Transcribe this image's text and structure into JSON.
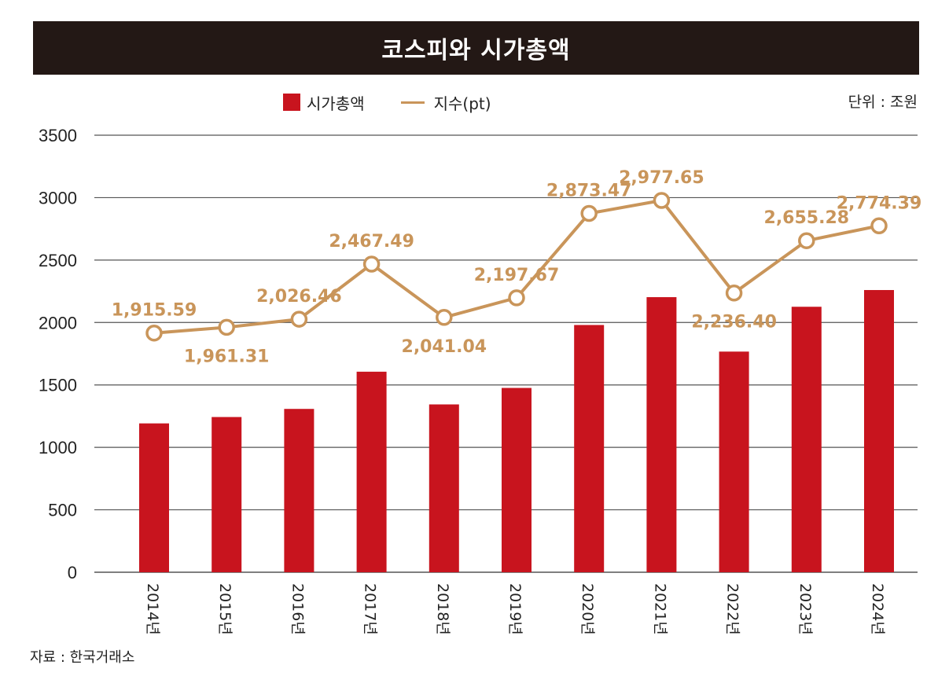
{
  "header": {
    "title": "코스피와 시가총액"
  },
  "legend": {
    "bar_label": "시가총액",
    "line_label": "지수(pt)"
  },
  "unit": "단위 : 조원",
  "source": "자료 : 한국거래소",
  "colors": {
    "bar": "#c8141e",
    "line": "#c9955a",
    "title_bg": "#231815",
    "grid": "#555555"
  },
  "chart_data": {
    "type": "bar+line",
    "title": "코스피와 시가총액",
    "categories": [
      "2014년",
      "2015년",
      "2016년",
      "2017년",
      "2018년",
      "2019년",
      "2020년",
      "2021년",
      "2022년",
      "2023년",
      "2024년"
    ],
    "ylim": [
      0,
      3500
    ],
    "yticks": [
      0,
      500,
      1000,
      1500,
      2000,
      2500,
      3000,
      3500
    ],
    "series": [
      {
        "name": "시가총액",
        "type": "bar",
        "values": [
          1192,
          1243,
          1308,
          1606,
          1344,
          1476,
          1980,
          2203,
          1767,
          2126,
          2260
        ]
      },
      {
        "name": "지수(pt)",
        "type": "line",
        "values": [
          1915.59,
          1961.31,
          2026.46,
          2467.49,
          2041.04,
          2197.67,
          2873.47,
          2977.65,
          2236.4,
          2655.28,
          2774.39
        ],
        "labels": [
          "1,915.59",
          "1,961.31",
          "2,026.46",
          "2,467.49",
          "2,041.04",
          "2,197.67",
          "2,873.47",
          "2,977.65",
          "2,236.40",
          "2,655.28",
          "2,774.39"
        ],
        "label_positions": [
          "above",
          "below",
          "above",
          "above",
          "below",
          "above",
          "above",
          "above",
          "below",
          "above",
          "above"
        ]
      }
    ]
  }
}
